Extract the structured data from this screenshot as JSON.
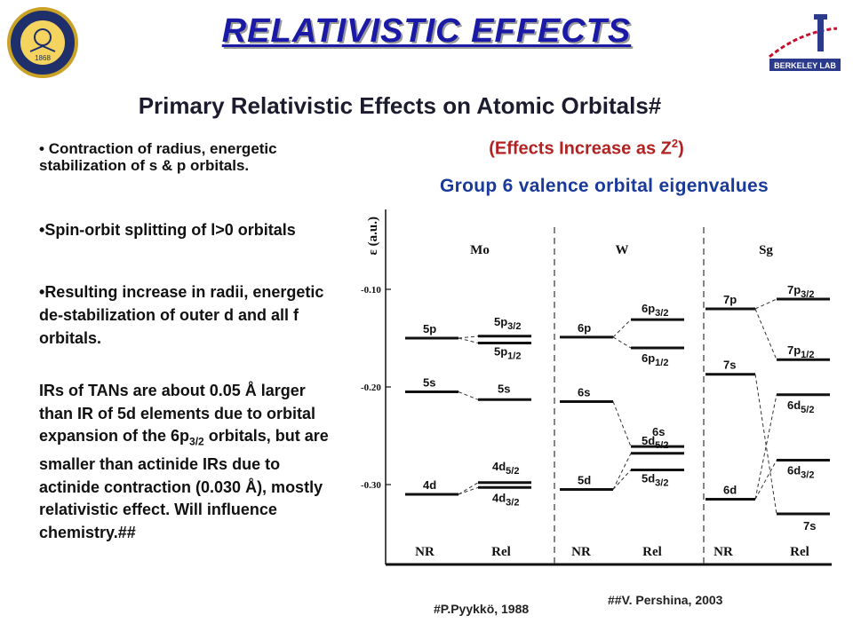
{
  "slide": {
    "title": "RELATIVISTIC  EFFECTS",
    "subtitle": "Primary Relativistic Effects on Atomic Orbitals#",
    "effects_prefix": "(Effects Increase as Z",
    "effects_sup": "2",
    "effects_suffix": ")",
    "group_title": "Group 6 valence orbital eigenvalues",
    "bullets": [
      "Contraction of radius, energetic stabilization of s & p orbitals.",
      "Spin-orbit splitting of l>0 orbitals",
      "Resulting increase in radii, energetic de-stabilization of outer d  and all f orbitals."
    ],
    "paragraph_pre": "IRs of TANs are about 0.05 Å larger than IR of 5d elements due to orbital expansion of the 6p",
    "paragraph_sub": "3/2",
    "paragraph_post": " orbitals, but are smaller than actinide IRs due to actinide contraction (0.030 Å), mostly relativistic effect. Will influence chemistry.##",
    "ref1": "#P.Pyykkö, 1988",
    "ref2": "##V. Pershina, 2003",
    "logo_uc_text": "UNIVERSITY OF CALIFORNIA",
    "logo_uc_year": "1868",
    "logo_lbl_text": "BERKELEY LAB",
    "colors": {
      "title": "#1a1aa6",
      "effects": "#b22222",
      "group": "#1a3a9a"
    }
  },
  "diagram": {
    "axis_label": "ε (a.u.)",
    "y_ticks": [
      "-0.10",
      "-0.20",
      "-0.30"
    ],
    "elements": [
      "Mo",
      "W",
      "Sg"
    ],
    "column_labels": [
      "NR",
      "Rel",
      "NR",
      "Rel",
      "NR",
      "Rel"
    ],
    "levels": {
      "Mo": {
        "nr": [
          {
            "label": "5p",
            "value": -0.15
          },
          {
            "label": "5s",
            "value": -0.205
          },
          {
            "label": "4d",
            "value": -0.31
          }
        ],
        "rel": [
          {
            "label": "5p3/2",
            "value": -0.148
          },
          {
            "label": "5p1/2",
            "value": -0.155
          },
          {
            "label": "5s",
            "value": -0.213
          },
          {
            "label": "4d5/2",
            "value": -0.298
          },
          {
            "label": "4d3/2",
            "value": -0.303
          }
        ]
      },
      "W": {
        "nr": [
          {
            "label": "6p",
            "value": -0.149
          },
          {
            "label": "6s",
            "value": -0.215
          },
          {
            "label": "5d",
            "value": -0.305
          }
        ],
        "rel": [
          {
            "label": "6p3/2",
            "value": -0.131
          },
          {
            "label": "6p1/2",
            "value": -0.16
          },
          {
            "label": "6s",
            "value": -0.261
          },
          {
            "label": "5d5/2",
            "value": -0.268
          },
          {
            "label": "5d3/2",
            "value": -0.285
          }
        ]
      },
      "Sg": {
        "nr": [
          {
            "label": "7p",
            "value": -0.12
          },
          {
            "label": "7s",
            "value": -0.187
          },
          {
            "label": "6d",
            "value": -0.315
          }
        ],
        "rel": [
          {
            "label": "7p3/2",
            "value": -0.11
          },
          {
            "label": "7p1/2",
            "value": -0.172
          },
          {
            "label": "6d5/2",
            "value": -0.208
          },
          {
            "label": "6d3/2",
            "value": -0.275
          },
          {
            "label": "7s",
            "value": -0.33
          }
        ]
      }
    }
  }
}
